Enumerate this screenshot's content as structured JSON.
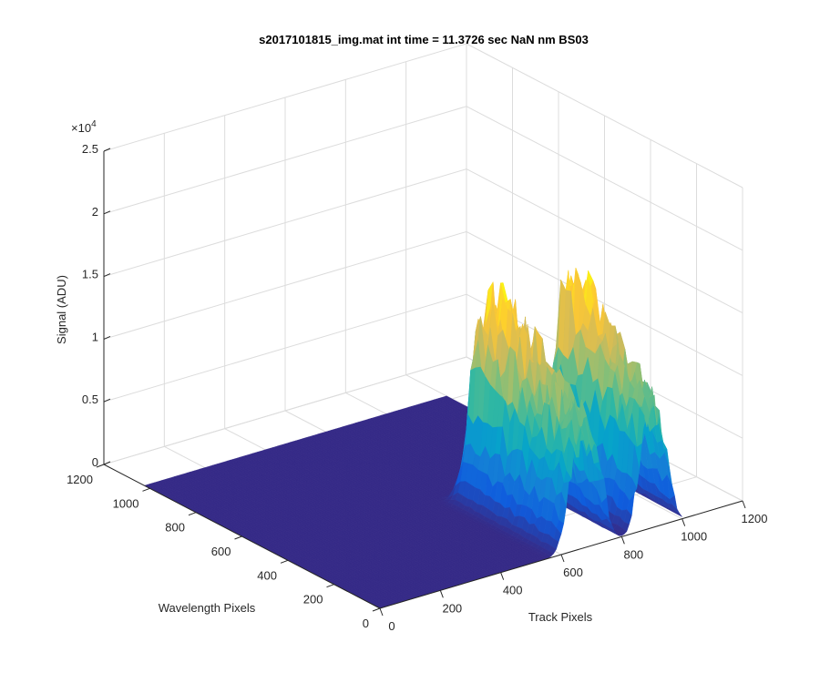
{
  "chart_data": {
    "type": "surface",
    "title": "s2017101815_img.mat int time = 11.3726 sec  NaN nm BS03",
    "xlabel": "Track Pixels",
    "ylabel": "Wavelength Pixels",
    "zlabel": "Signal (ADU)",
    "z_exponent_label": "×10",
    "z_exponent_power": "4",
    "xlim": [
      0,
      1200
    ],
    "ylim": [
      0,
      1200
    ],
    "zlim": [
      0,
      25000
    ],
    "x_ticks": [
      "0",
      "200",
      "400",
      "600",
      "800",
      "1000",
      "1200"
    ],
    "y_ticks": [
      "0",
      "200",
      "400",
      "600",
      "800",
      "1000",
      "1200"
    ],
    "z_ticks": [
      "0",
      "0.5",
      "1",
      "1.5",
      "2",
      "2.5"
    ],
    "grid": true,
    "colormap": [
      "#352a87",
      "#0f5cdd",
      "#1481d6",
      "#06a4ca",
      "#2eb7a4",
      "#87bf77",
      "#d1bb59",
      "#fec832",
      "#f9fb0e"
    ],
    "surface_extent": {
      "x": [
        0,
        1000
      ],
      "y": [
        0,
        1024
      ]
    },
    "peaks": [
      {
        "x_center": 680,
        "x_width": 75,
        "y_min": 0,
        "y_max": 480,
        "peak_signal": 16500
      },
      {
        "x_center": 905,
        "x_width": 65,
        "y_min": 0,
        "y_max": 420,
        "peak_signal": 16500
      }
    ]
  }
}
